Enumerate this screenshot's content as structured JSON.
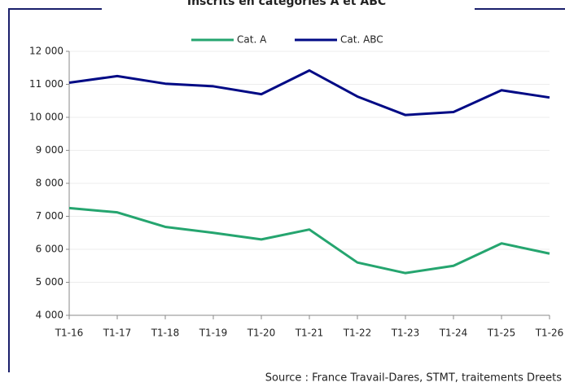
{
  "chart_data": {
    "type": "line",
    "title": "Inscrits en catégories A et ABC",
    "categories": [
      "T1-16",
      "T1-17",
      "T1-18",
      "T1-19",
      "T1-20",
      "T1-21",
      "T1-22",
      "T1-23",
      "T1-24",
      "T1-25",
      "T1-26"
    ],
    "series": [
      {
        "name": "Cat. A",
        "color": "#25a56f",
        "values": [
          7250,
          7120,
          6680,
          6500,
          6300,
          6600,
          5600,
          5280,
          5500,
          6180,
          5870
        ]
      },
      {
        "name": "Cat. ABC",
        "color": "#000a85",
        "values": [
          11050,
          11250,
          11020,
          10940,
          10700,
          11420,
          10630,
          10070,
          10160,
          10820,
          10600
        ]
      }
    ],
    "ylim": [
      4000,
      12000
    ],
    "yticks": [
      {
        "value": 4000,
        "label": "4 000"
      },
      {
        "value": 5000,
        "label": "5 000"
      },
      {
        "value": 6000,
        "label": "6 000"
      },
      {
        "value": 7000,
        "label": "7 000"
      },
      {
        "value": 8000,
        "label": "8 000"
      },
      {
        "value": 9000,
        "label": "9 000"
      },
      {
        "value": 10000,
        "label": "10 000"
      },
      {
        "value": 11000,
        "label": "11 000"
      },
      {
        "value": 12000,
        "label": "12 000"
      }
    ],
    "grid": true,
    "legend": "top",
    "source": "Source : France Travail-Dares, STMT, traitements Dreets"
  }
}
